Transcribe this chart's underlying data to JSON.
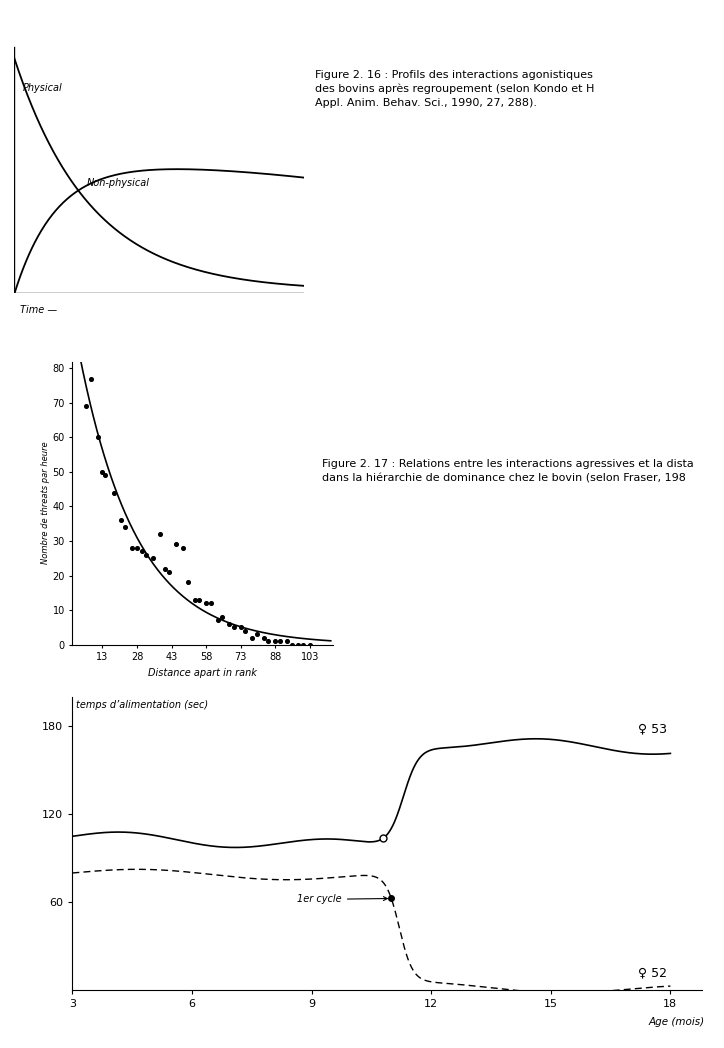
{
  "fig1": {
    "label_physical": "Physical",
    "label_nonphysical": "Non-physical",
    "xlabel": "Time —",
    "title_line1": "Figure 2. 16 : Profils des interactions agonistiques",
    "title_line2": "des bovins après regroupement (selon Kondo et H",
    "title_line3": "Appl. Anim. Behav. Sci., 1990, 27, 288)."
  },
  "fig2": {
    "title_line1": "Figure 2. 17 : Relations entre les interactions agressives et la dista",
    "title_line2": "dans la hiérarchie de dominance chez le bovin (selon Fraser, 198",
    "ylabel": "Nombre de threats par heure",
    "xlabel": "Distance apart in rank",
    "yticks": [
      0,
      10,
      20,
      30,
      40,
      50,
      60,
      70,
      80
    ],
    "xticks": [
      13,
      28,
      43,
      58,
      73,
      88,
      103
    ],
    "scatter_x": [
      6,
      8,
      11,
      13,
      14,
      18,
      21,
      23,
      26,
      28,
      30,
      32,
      35,
      38,
      40,
      42,
      45,
      48,
      50,
      53,
      55,
      58,
      60,
      63,
      65,
      68,
      70,
      73,
      75,
      78,
      80,
      83,
      85,
      88,
      90,
      93,
      95,
      98,
      100,
      103
    ],
    "scatter_y": [
      69,
      77,
      60,
      50,
      49,
      44,
      36,
      34,
      28,
      28,
      27,
      26,
      25,
      32,
      22,
      21,
      29,
      28,
      18,
      13,
      13,
      12,
      12,
      7,
      8,
      6,
      5,
      5,
      4,
      2,
      3,
      2,
      1,
      1,
      1,
      1,
      0,
      0,
      0,
      0
    ]
  },
  "fig3": {
    "ylabel_text": "temps d’alimentation (sec)",
    "xlabel_text": "Age (mois)",
    "yticks": [
      60,
      120,
      180
    ],
    "xticks": [
      3,
      6,
      9,
      12,
      15,
      18
    ],
    "label_solid": "♀ 53",
    "label_dashed": "♀ 52",
    "annotation": "1er cycle"
  },
  "bg_color": "#ffffff"
}
